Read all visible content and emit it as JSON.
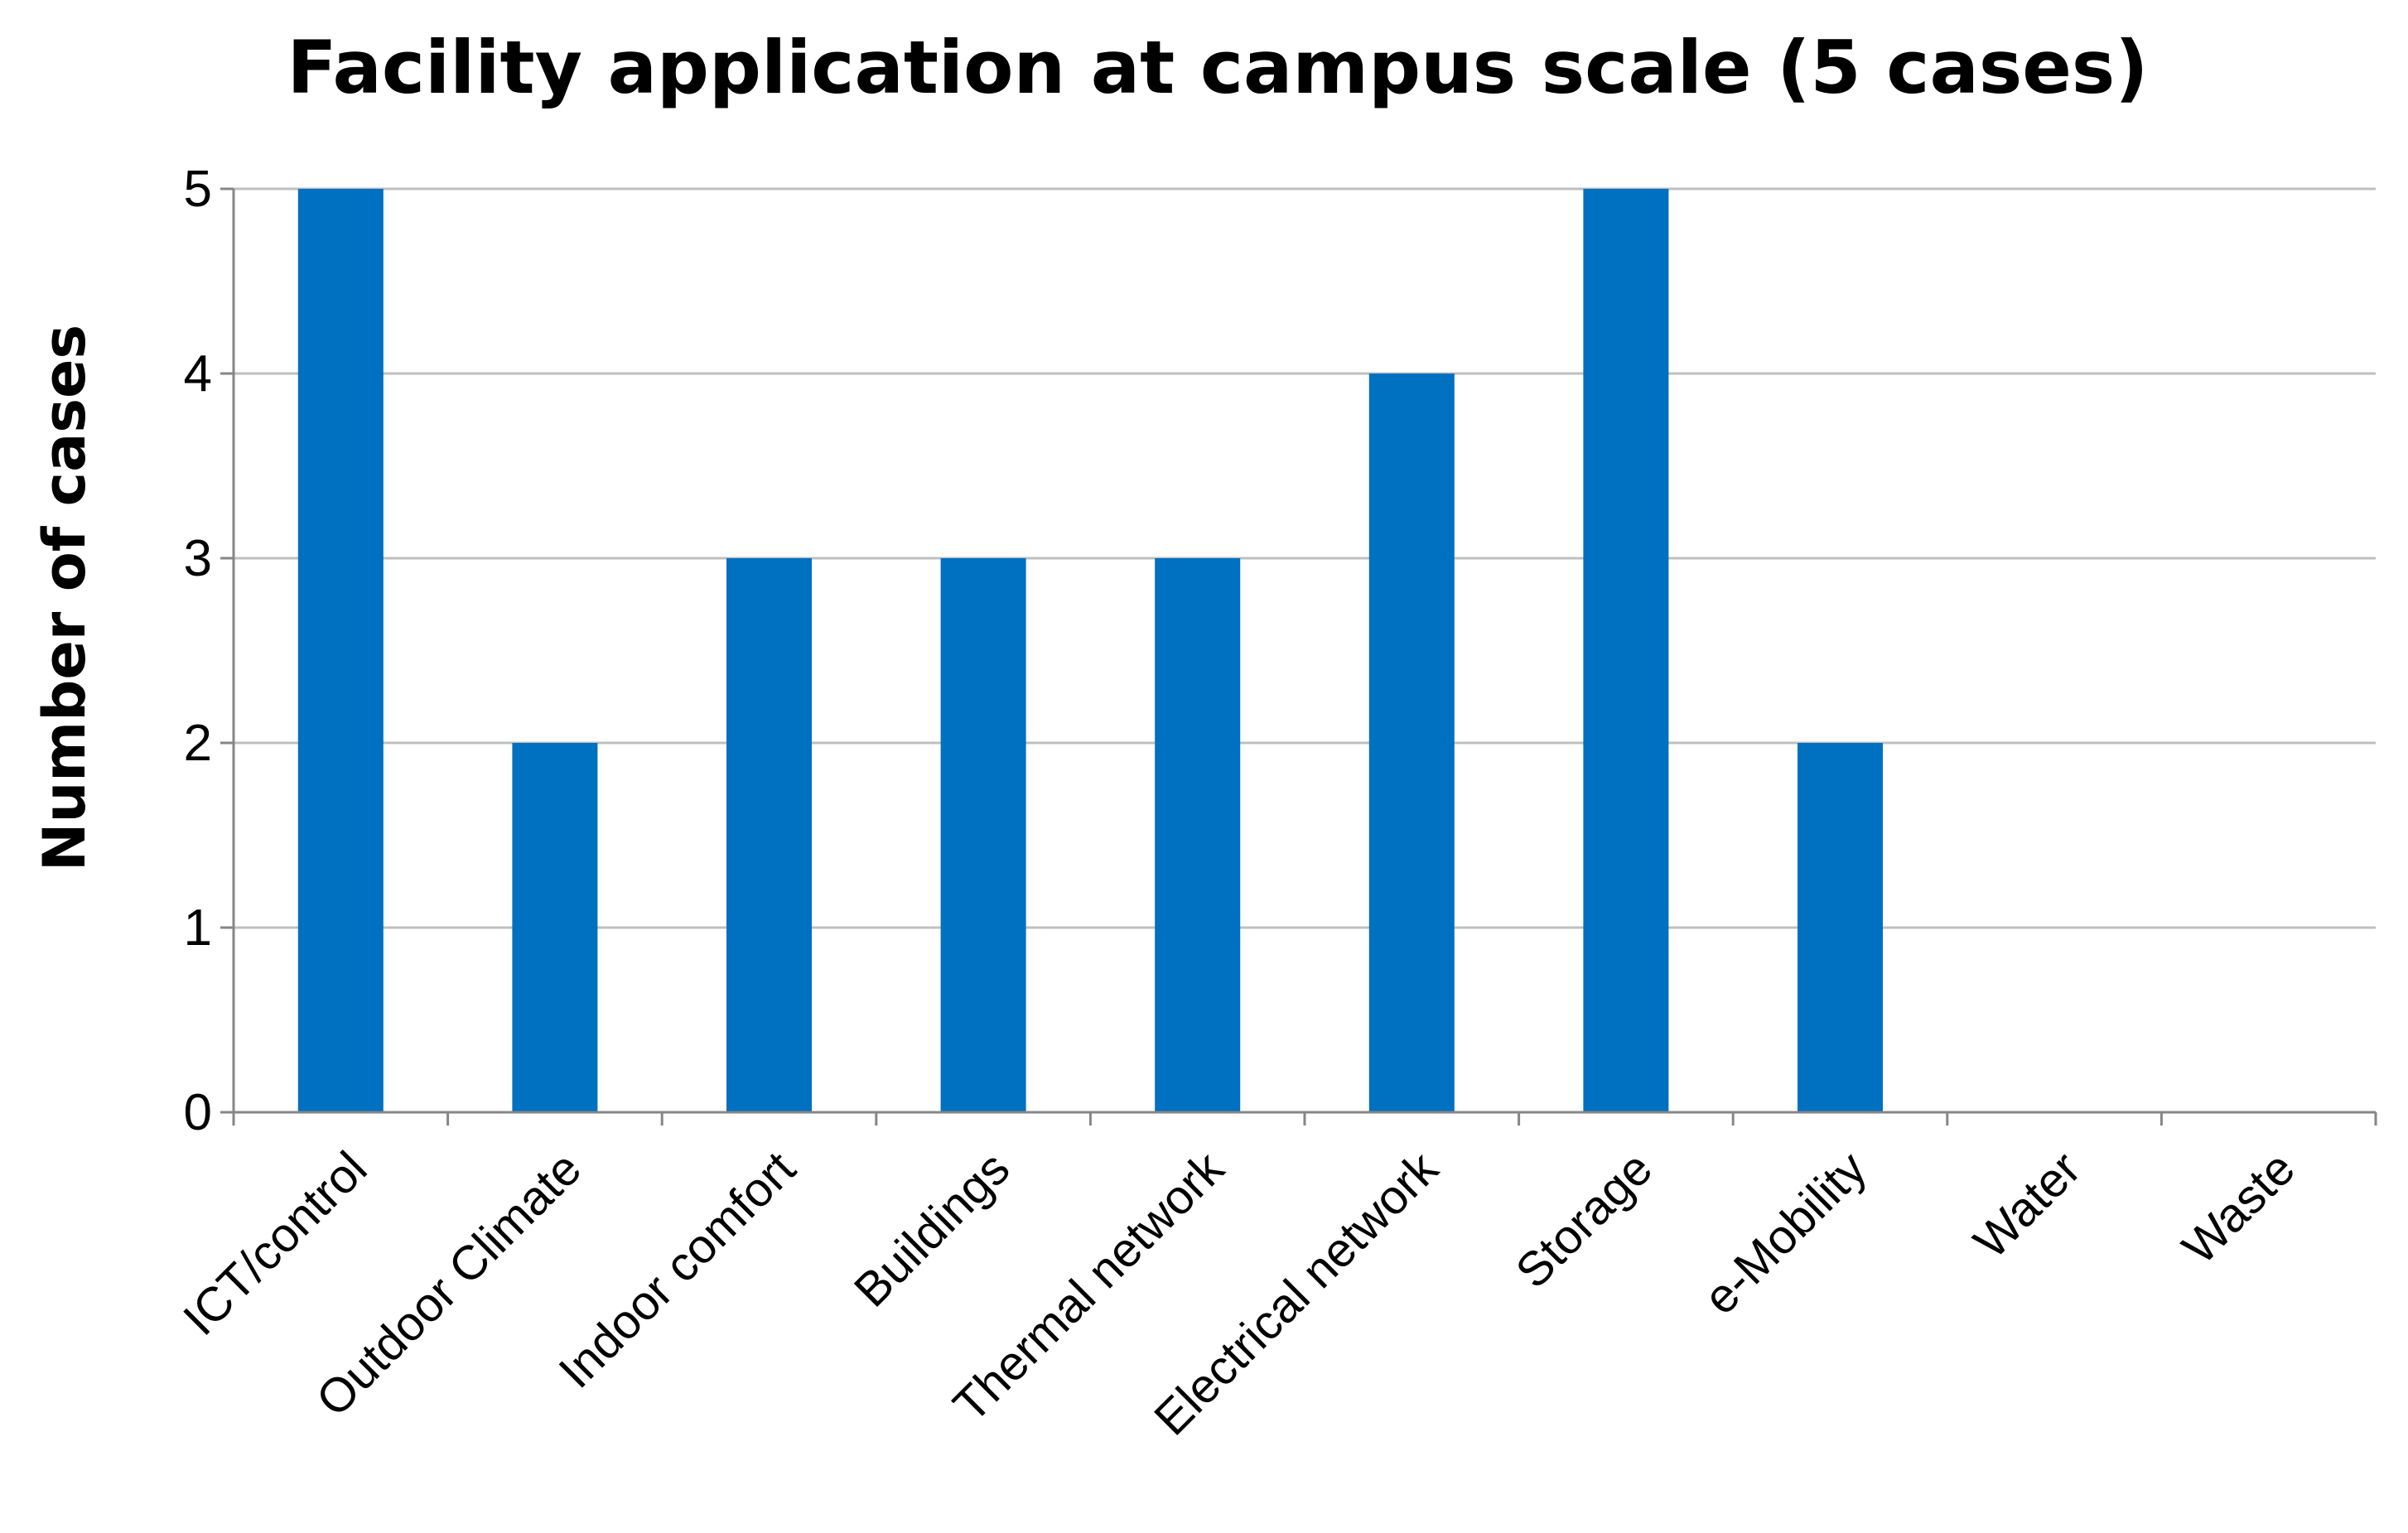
{
  "chart_data": {
    "type": "bar",
    "title": "Facility application at campus scale (5 cases)",
    "xlabel": "",
    "ylabel": "Number of cases",
    "categories": [
      "ICT/control",
      "Outdoor Climate",
      "Indoor comfort",
      "Buildings",
      "Thermal network",
      "Electrical network",
      "Storage",
      "e-Mobility",
      "Water",
      "Waste"
    ],
    "values": [
      5,
      2,
      3,
      3,
      3,
      4,
      5,
      2,
      0,
      0
    ],
    "ylim": [
      0,
      5
    ],
    "yticks": [
      "0",
      "1",
      "2",
      "3",
      "4",
      "5"
    ],
    "grid": true,
    "legend": "none",
    "bar_color": "#0070C0",
    "grid_color": "#BFBFBF",
    "axis_color": "#868686"
  }
}
